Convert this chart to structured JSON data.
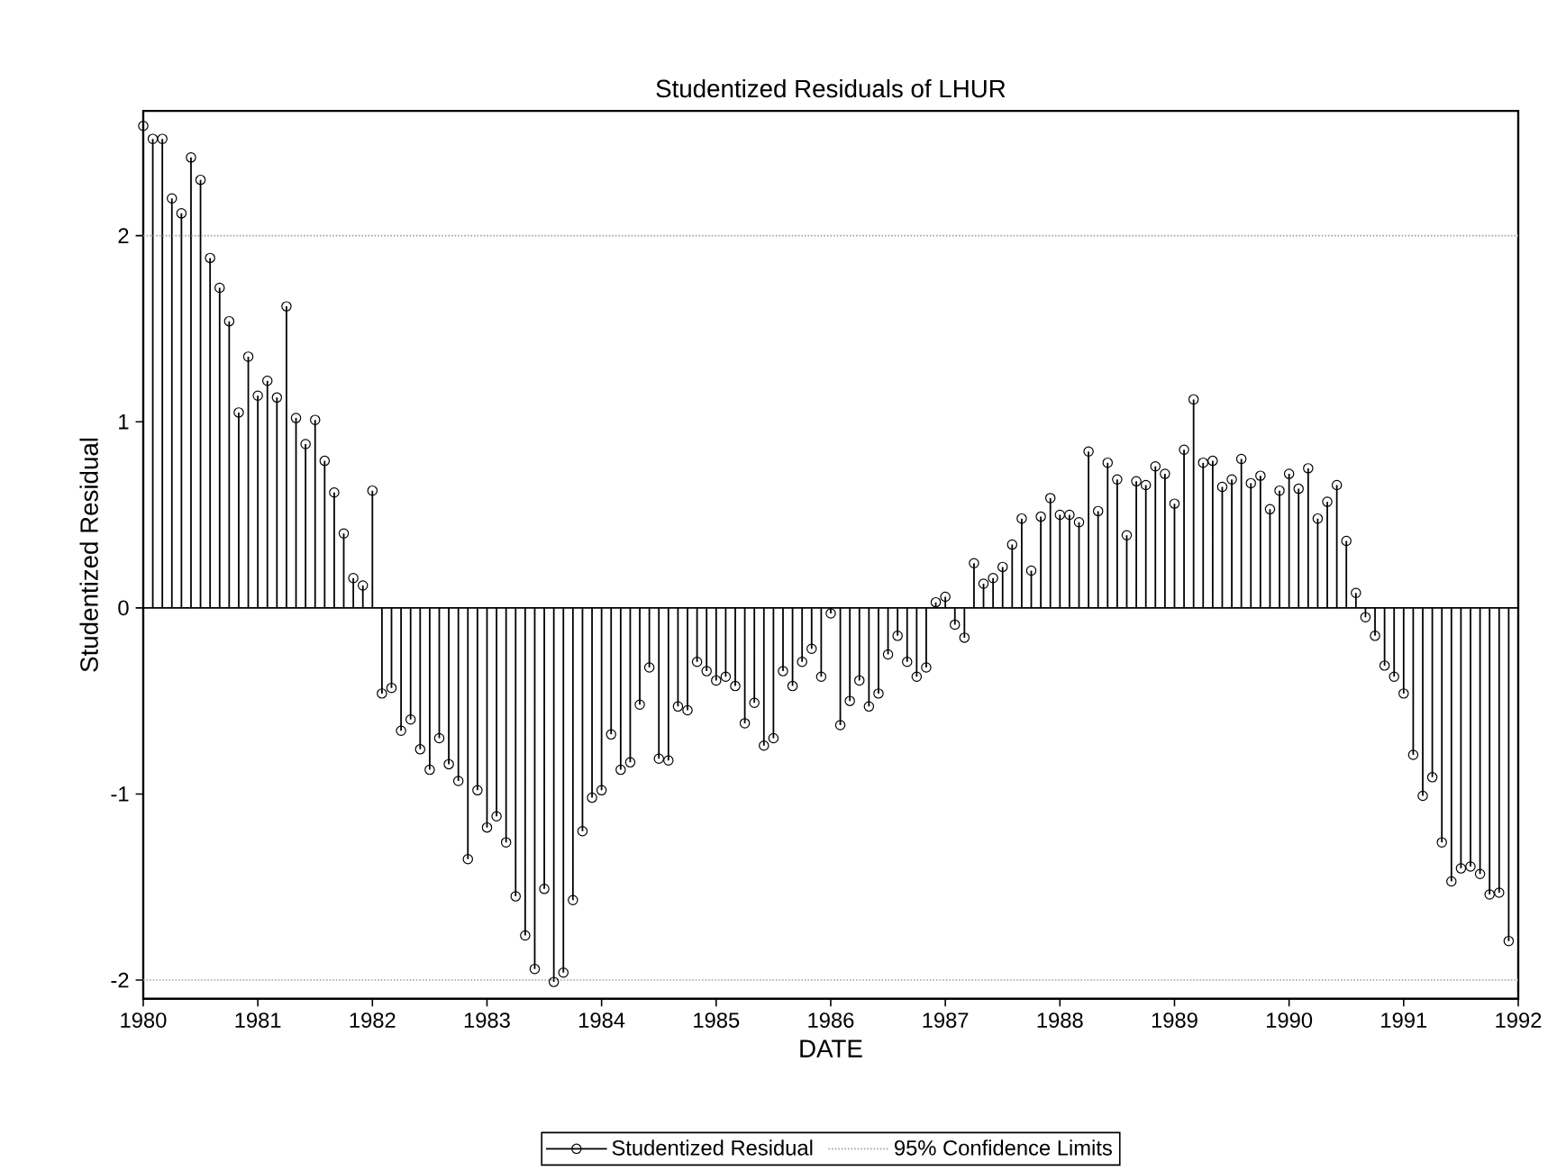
{
  "chart_data": {
    "type": "lollipop",
    "title": "Studentized Residuals of LHUR",
    "xlabel": "DATE",
    "ylabel": "Studentized Residual",
    "x": [
      "1980-01",
      "1980-02",
      "1980-03",
      "1980-04",
      "1980-05",
      "1980-06",
      "1980-07",
      "1980-08",
      "1980-09",
      "1980-10",
      "1980-11",
      "1980-12",
      "1981-01",
      "1981-02",
      "1981-03",
      "1981-04",
      "1981-05",
      "1981-06",
      "1981-07",
      "1981-08",
      "1981-09",
      "1981-10",
      "1981-11",
      "1981-12",
      "1982-01",
      "1982-02",
      "1982-03",
      "1982-04",
      "1982-05",
      "1982-06",
      "1982-07",
      "1982-08",
      "1982-09",
      "1982-10",
      "1982-11",
      "1982-12",
      "1983-01",
      "1983-02",
      "1983-03",
      "1983-04",
      "1983-05",
      "1983-06",
      "1983-07",
      "1983-08",
      "1983-09",
      "1983-10",
      "1983-11",
      "1983-12",
      "1984-01",
      "1984-02",
      "1984-03",
      "1984-04",
      "1984-05",
      "1984-06",
      "1984-07",
      "1984-08",
      "1984-09",
      "1984-10",
      "1984-11",
      "1984-12",
      "1985-01",
      "1985-02",
      "1985-03",
      "1985-04",
      "1985-05",
      "1985-06",
      "1985-07",
      "1985-08",
      "1985-09",
      "1985-10",
      "1985-11",
      "1985-12",
      "1986-01",
      "1986-02",
      "1986-03",
      "1986-04",
      "1986-05",
      "1986-06",
      "1986-07",
      "1986-08",
      "1986-09",
      "1986-10",
      "1986-11",
      "1986-12",
      "1987-01",
      "1987-02",
      "1987-03",
      "1987-04",
      "1987-05",
      "1987-06",
      "1987-07",
      "1987-08",
      "1987-09",
      "1987-10",
      "1987-11",
      "1987-12",
      "1988-01",
      "1988-02",
      "1988-03",
      "1988-04",
      "1988-05",
      "1988-06",
      "1988-07",
      "1988-08",
      "1988-09",
      "1988-10",
      "1988-11",
      "1988-12",
      "1989-01",
      "1989-02",
      "1989-03",
      "1989-04",
      "1989-05",
      "1989-06",
      "1989-07",
      "1989-08",
      "1989-09",
      "1989-10",
      "1989-11",
      "1989-12",
      "1990-01",
      "1990-02",
      "1990-03",
      "1990-04",
      "1990-05",
      "1990-06",
      "1990-07",
      "1990-08",
      "1990-09",
      "1990-10",
      "1990-11",
      "1990-12",
      "1991-01",
      "1991-02",
      "1991-03",
      "1991-04",
      "1991-05",
      "1991-06",
      "1991-07",
      "1991-08",
      "1991-09",
      "1991-10",
      "1991-11",
      "1991-12"
    ],
    "series": [
      {
        "name": "Studentized Residual",
        "color": "#000000",
        "values": [
          2.59,
          2.52,
          2.52,
          2.2,
          2.12,
          2.42,
          2.3,
          1.88,
          1.72,
          1.54,
          1.05,
          1.35,
          1.14,
          1.22,
          1.13,
          1.62,
          1.02,
          0.88,
          1.01,
          0.79,
          0.62,
          0.4,
          0.16,
          0.12,
          0.63,
          -0.46,
          -0.43,
          -0.66,
          -0.6,
          -0.76,
          -0.87,
          -0.7,
          -0.84,
          -0.93,
          -1.35,
          -0.98,
          -1.18,
          -1.12,
          -1.26,
          -1.55,
          -1.76,
          -1.94,
          -1.51,
          -2.01,
          -1.96,
          -1.57,
          -1.2,
          -1.02,
          -0.98,
          -0.68,
          -0.87,
          -0.83,
          -0.52,
          -0.32,
          -0.81,
          -0.82,
          -0.53,
          -0.55,
          -0.29,
          -0.34,
          -0.39,
          -0.37,
          -0.42,
          -0.62,
          -0.51,
          -0.74,
          -0.7,
          -0.34,
          -0.42,
          -0.29,
          -0.22,
          -0.37,
          -0.03,
          -0.63,
          -0.5,
          -0.39,
          -0.53,
          -0.46,
          -0.25,
          -0.15,
          -0.29,
          -0.37,
          -0.32,
          0.03,
          0.06,
          -0.09,
          -0.16,
          0.24,
          0.13,
          0.16,
          0.22,
          0.34,
          0.48,
          0.2,
          0.49,
          0.59,
          0.5,
          0.5,
          0.46,
          0.84,
          0.52,
          0.78,
          0.69,
          0.39,
          0.68,
          0.66,
          0.76,
          0.72,
          0.56,
          0.85,
          1.12,
          0.78,
          0.79,
          0.65,
          0.69,
          0.8,
          0.67,
          0.71,
          0.53,
          0.63,
          0.72,
          0.64,
          0.75,
          0.48,
          0.57,
          0.66,
          0.36,
          0.08,
          -0.05,
          -0.15,
          -0.31,
          -0.37,
          -0.46,
          -0.79,
          -1.01,
          -0.91,
          -1.26,
          -1.47,
          -1.4,
          -1.39,
          -1.43,
          -1.54,
          -1.53,
          -1.79
        ]
      }
    ],
    "xlim": [
      "1980-01",
      "1992-01"
    ],
    "xticks": [
      "1980",
      "1981",
      "1982",
      "1983",
      "1984",
      "1985",
      "1986",
      "1987",
      "1988",
      "1989",
      "1990",
      "1991",
      "1992"
    ],
    "ylim": [
      -2.1,
      2.67
    ],
    "yticks": [
      -2,
      -1,
      0,
      1,
      2
    ],
    "ref_lines": [
      {
        "axis": "y",
        "value": 2,
        "label": "95% Confidence Limits",
        "color": "#a0a0a0",
        "line_style": "dotted"
      },
      {
        "axis": "y",
        "value": -2,
        "color": "#a0a0a0",
        "line_style": "dotted"
      }
    ],
    "marker": "circle",
    "legend": "bottom",
    "grid": false
  }
}
